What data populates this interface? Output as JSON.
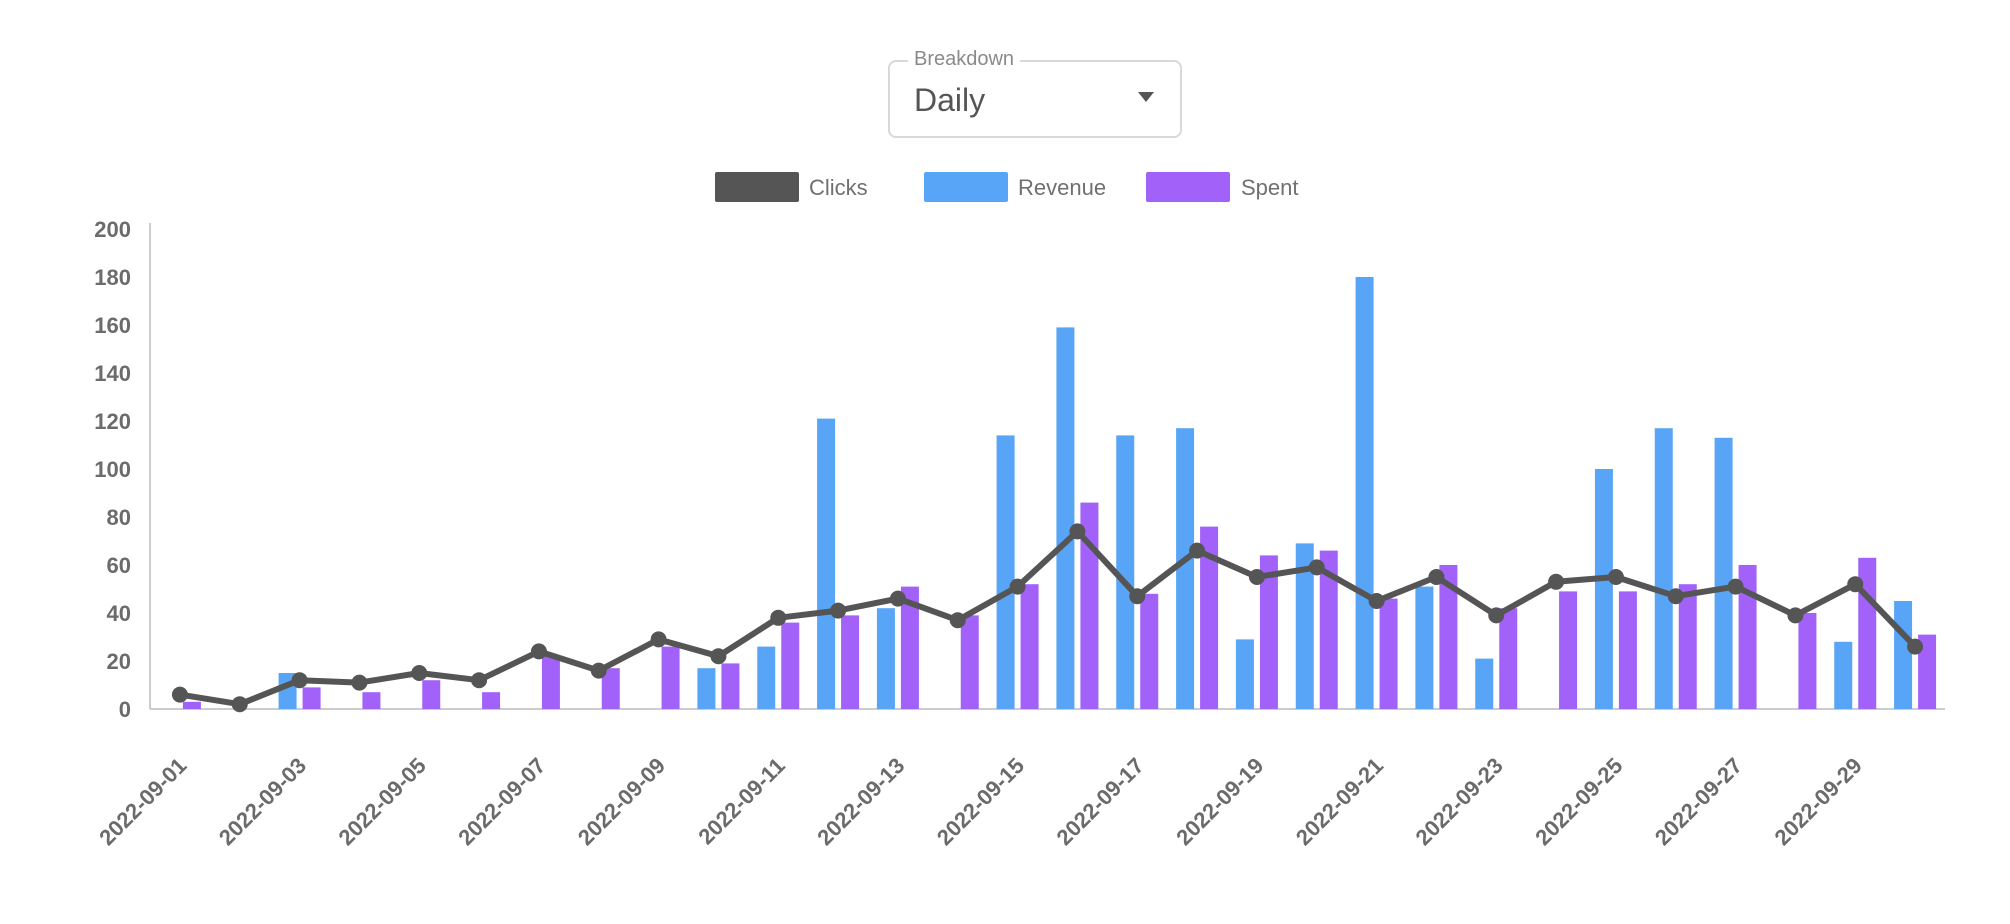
{
  "breakdown": {
    "label": "Breakdown",
    "value": "Daily"
  },
  "colors": {
    "clicks": "#555555",
    "revenue": "#58a4f6",
    "spent": "#a262f9",
    "axis": "#cccccc"
  },
  "chart_data": {
    "type": "bar",
    "title": "",
    "xlabel": "",
    "ylabel": "",
    "ylim": [
      0,
      200
    ],
    "yticks": [
      0,
      20,
      40,
      60,
      80,
      100,
      120,
      140,
      160,
      180,
      200
    ],
    "legend_position": "top-center",
    "categories": [
      "2022-09-01",
      "2022-09-02",
      "2022-09-03",
      "2022-09-04",
      "2022-09-05",
      "2022-09-06",
      "2022-09-07",
      "2022-09-08",
      "2022-09-09",
      "2022-09-10",
      "2022-09-11",
      "2022-09-12",
      "2022-09-13",
      "2022-09-14",
      "2022-09-15",
      "2022-09-16",
      "2022-09-17",
      "2022-09-18",
      "2022-09-19",
      "2022-09-20",
      "2022-09-21",
      "2022-09-22",
      "2022-09-23",
      "2022-09-24",
      "2022-09-25",
      "2022-09-26",
      "2022-09-27",
      "2022-09-28",
      "2022-09-29",
      "2022-09-30"
    ],
    "xtick_labels": [
      "2022-09-01",
      "2022-09-03",
      "2022-09-05",
      "2022-09-07",
      "2022-09-09",
      "2022-09-11",
      "2022-09-13",
      "2022-09-15",
      "2022-09-17",
      "2022-09-19",
      "2022-09-21",
      "2022-09-23",
      "2022-09-25",
      "2022-09-27",
      "2022-09-29"
    ],
    "series": [
      {
        "name": "Clicks",
        "kind": "line",
        "values": [
          6,
          2,
          12,
          11,
          15,
          12,
          24,
          16,
          29,
          22,
          38,
          41,
          46,
          37,
          51,
          74,
          47,
          66,
          55,
          59,
          45,
          55,
          39,
          53,
          55,
          47,
          51,
          39,
          52,
          26
        ]
      },
      {
        "name": "Revenue",
        "kind": "bar",
        "values": [
          0,
          0,
          15,
          0,
          0,
          0,
          0,
          0,
          0,
          17,
          26,
          121,
          42,
          0,
          114,
          159,
          114,
          117,
          29,
          69,
          180,
          51,
          21,
          0,
          100,
          117,
          113,
          0,
          28,
          45
        ]
      },
      {
        "name": "Spent",
        "kind": "bar",
        "values": [
          3,
          0,
          9,
          7,
          12,
          7,
          22,
          17,
          26,
          19,
          36,
          39,
          51,
          39,
          52,
          86,
          48,
          76,
          64,
          66,
          46,
          60,
          42,
          49,
          49,
          52,
          60,
          40,
          63,
          31
        ]
      }
    ]
  }
}
